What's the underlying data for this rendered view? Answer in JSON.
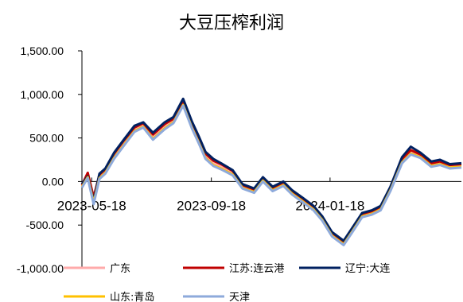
{
  "chart_data": {
    "type": "line",
    "title": "大豆压榨利润",
    "xlabel": "",
    "ylabel": "",
    "ylim": [
      -1000,
      1500
    ],
    "yticks": [
      1500,
      1000,
      500,
      0,
      -500,
      -1000
    ],
    "ytick_labels": [
      "1,500.00",
      "1,000.00",
      "500.00",
      "0.00",
      "-500.00",
      "-1,000.00"
    ],
    "xlim": [
      "2023-05-08",
      "2024-06-01"
    ],
    "xticks": [
      "2023-05-18",
      "2023-09-18",
      "2024-01-18"
    ],
    "grid": false,
    "legend_position": "bottom",
    "x": [
      "2023-05-08",
      "2023-05-14",
      "2023-05-20",
      "2023-05-26",
      "2023-06-01",
      "2023-06-10",
      "2023-06-20",
      "2023-07-01",
      "2023-07-10",
      "2023-07-20",
      "2023-08-01",
      "2023-08-10",
      "2023-08-20",
      "2023-08-29",
      "2023-09-05",
      "2023-09-12",
      "2023-09-20",
      "2023-09-28",
      "2023-10-10",
      "2023-10-20",
      "2023-11-01",
      "2023-11-10",
      "2023-11-20",
      "2023-12-01",
      "2023-12-10",
      "2023-12-20",
      "2024-01-01",
      "2024-01-10",
      "2024-01-20",
      "2024-02-01",
      "2024-02-10",
      "2024-02-20",
      "2024-03-01",
      "2024-03-10",
      "2024-03-20",
      "2024-04-01",
      "2024-04-10",
      "2024-04-20",
      "2024-05-01",
      "2024-05-10",
      "2024-05-20",
      "2024-06-01"
    ],
    "series": [
      {
        "name": "广东",
        "color": "#ffaaaa",
        "values": [
          -50,
          80,
          -200,
          60,
          120,
          300,
          450,
          600,
          650,
          520,
          640,
          700,
          900,
          650,
          480,
          300,
          220,
          180,
          100,
          -50,
          -100,
          30,
          -80,
          -20,
          -120,
          -200,
          -300,
          -420,
          -600,
          -700,
          -550,
          -380,
          -350,
          -300,
          -80,
          250,
          350,
          300,
          200,
          220,
          180,
          190
        ]
      },
      {
        "name": "江苏:连云港",
        "color": "#c00000",
        "values": [
          -40,
          100,
          -180,
          80,
          140,
          320,
          470,
          620,
          670,
          540,
          660,
          720,
          920,
          670,
          500,
          320,
          240,
          200,
          120,
          -40,
          -90,
          40,
          -70,
          -10,
          -110,
          -190,
          -290,
          -410,
          -590,
          -690,
          -540,
          -370,
          -340,
          -290,
          -70,
          260,
          360,
          310,
          210,
          230,
          190,
          200
        ]
      },
      {
        "name": "辽宁:大连",
        "color": "#002060",
        "values": [
          -30,
          60,
          -220,
          90,
          150,
          330,
          480,
          640,
          680,
          560,
          680,
          740,
          950,
          690,
          520,
          340,
          260,
          210,
          130,
          -30,
          -80,
          50,
          -60,
          0,
          -100,
          -180,
          -280,
          -400,
          -580,
          -680,
          -530,
          -360,
          -330,
          -280,
          -60,
          280,
          400,
          330,
          230,
          250,
          200,
          210
        ]
      },
      {
        "name": "山东:青岛",
        "color": "#ffc000",
        "values": [
          -60,
          50,
          -240,
          40,
          100,
          270,
          420,
          580,
          630,
          490,
          610,
          680,
          880,
          620,
          450,
          270,
          190,
          150,
          80,
          -70,
          -120,
          10,
          -100,
          -40,
          -140,
          -220,
          -320,
          -440,
          -620,
          -720,
          -570,
          -400,
          -370,
          -320,
          -100,
          220,
          320,
          280,
          180,
          200,
          160,
          170
        ]
      },
      {
        "name": "天津",
        "color": "#8eaadb",
        "values": [
          -70,
          40,
          -260,
          30,
          90,
          260,
          410,
          570,
          620,
          480,
          600,
          670,
          870,
          610,
          440,
          260,
          180,
          140,
          70,
          -80,
          -130,
          0,
          -110,
          -50,
          -150,
          -230,
          -330,
          -450,
          -630,
          -730,
          -580,
          -410,
          -380,
          -330,
          -110,
          210,
          310,
          270,
          170,
          190,
          150,
          160
        ]
      }
    ]
  }
}
